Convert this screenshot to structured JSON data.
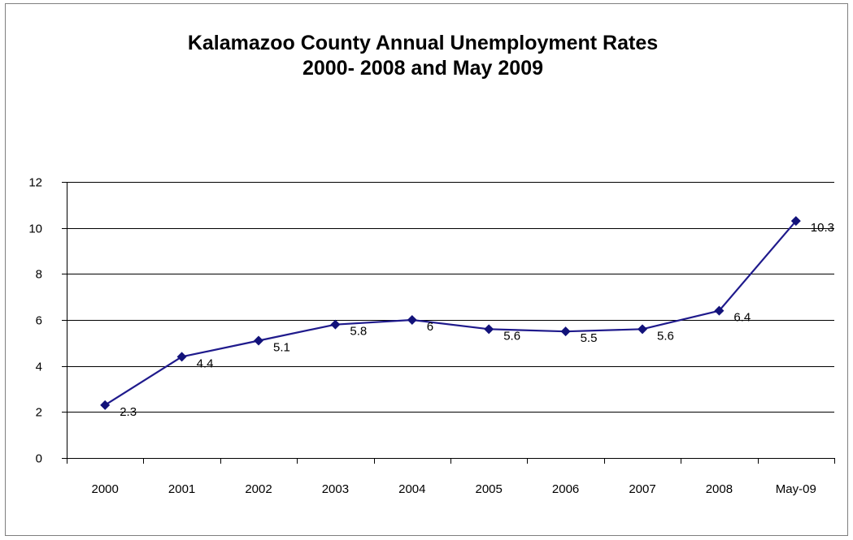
{
  "chart_data": {
    "type": "line",
    "title": "Kalamazoo County Annual Unemployment Rates",
    "subtitle": "2000- 2008 and May 2009",
    "xlabel": "",
    "ylabel": "",
    "categories": [
      "2000",
      "2001",
      "2002",
      "2003",
      "2004",
      "2005",
      "2006",
      "2007",
      "2008",
      "May-09"
    ],
    "series": [
      {
        "values": [
          2.3,
          4.4,
          5.1,
          5.8,
          6,
          5.6,
          5.5,
          5.6,
          6.4,
          10.3
        ],
        "data_labels": [
          "2.3",
          "4.4",
          "5.1",
          "5.8",
          "6",
          "5.6",
          "5.5",
          "5.6",
          "6.4",
          "10.3"
        ]
      }
    ],
    "ylim": [
      0,
      12
    ],
    "yticks": [
      "0",
      "2",
      "4",
      "6",
      "8",
      "10",
      "12"
    ],
    "grid": "horizontal",
    "legend": "none",
    "colors": {
      "line": "#1f1a8c",
      "marker": "#12127a",
      "grid": "#000000",
      "axis": "#000000"
    }
  }
}
